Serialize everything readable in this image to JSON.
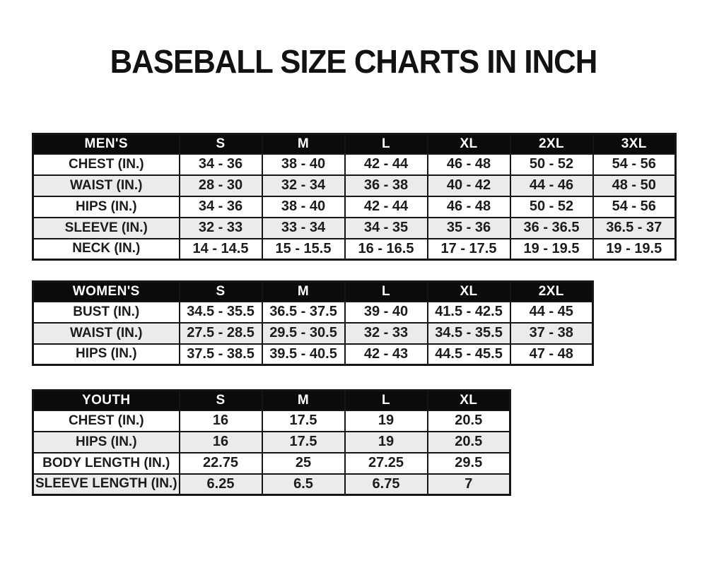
{
  "page": {
    "title": "BASEBALL SIZE CHARTS IN INCH"
  },
  "colors": {
    "header_bg": "#0b0b0b",
    "header_text": "#ffffff",
    "row_bg": "#ffffff",
    "row_alt_bg": "#ebebeb",
    "border": "#161616",
    "text": "#1c1c1c"
  },
  "chart_data": [
    {
      "type": "table",
      "id": "mens",
      "title": "MEN'S",
      "columns": [
        "MEN'S",
        "S",
        "M",
        "L",
        "XL",
        "2XL",
        "3XL"
      ],
      "rows": [
        [
          "CHEST (IN.)",
          "34 - 36",
          "38 - 40",
          "42 - 44",
          "46 - 48",
          "50 - 52",
          "54 - 56"
        ],
        [
          "WAIST (IN.)",
          "28 - 30",
          "32 - 34",
          "36 - 38",
          "40 - 42",
          "44 - 46",
          "48 - 50"
        ],
        [
          "HIPS (IN.)",
          "34 - 36",
          "38 - 40",
          "42 - 44",
          "46 - 48",
          "50 - 52",
          "54 - 56"
        ],
        [
          "SLEEVE (IN.)",
          "32 - 33",
          "33 - 34",
          "34 - 35",
          "35 - 36",
          "36 - 36.5",
          "36.5 - 37"
        ],
        [
          "NECK (IN.)",
          "14 - 14.5",
          "15 - 15.5",
          "16 - 16.5",
          "17 - 17.5",
          "19 - 19.5",
          "19 - 19.5"
        ]
      ]
    },
    {
      "type": "table",
      "id": "womens",
      "title": "WOMEN'S",
      "columns": [
        "WOMEN'S",
        "S",
        "M",
        "L",
        "XL",
        "2XL"
      ],
      "rows": [
        [
          "BUST (IN.)",
          "34.5 - 35.5",
          "36.5 - 37.5",
          "39 - 40",
          "41.5 - 42.5",
          "44 - 45"
        ],
        [
          "WAIST (IN.)",
          "27.5 - 28.5",
          "29.5 - 30.5",
          "32 - 33",
          "34.5 - 35.5",
          "37 - 38"
        ],
        [
          "HIPS (IN.)",
          "37.5 - 38.5",
          "39.5 - 40.5",
          "42 - 43",
          "44.5 - 45.5",
          "47 - 48"
        ]
      ]
    },
    {
      "type": "table",
      "id": "youth",
      "title": "YOUTH",
      "columns": [
        "YOUTH",
        "S",
        "M",
        "L",
        "XL"
      ],
      "rows": [
        [
          "CHEST (IN.)",
          "16",
          "17.5",
          "19",
          "20.5"
        ],
        [
          "HIPS (IN.)",
          "16",
          "17.5",
          "19",
          "20.5"
        ],
        [
          "BODY LENGTH (IN.)",
          "22.75",
          "25",
          "27.25",
          "29.5"
        ],
        [
          "SLEEVE LENGTH (IN.)",
          "6.25",
          "6.5",
          "6.75",
          "7"
        ]
      ]
    }
  ]
}
